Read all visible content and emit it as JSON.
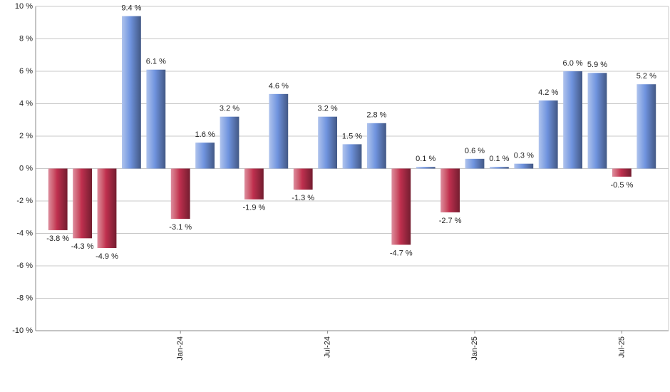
{
  "chart_data": {
    "type": "bar",
    "categories": [
      null,
      null,
      null,
      null,
      null,
      "Jan-24",
      null,
      null,
      null,
      null,
      null,
      "Jul-24",
      null,
      null,
      null,
      null,
      null,
      "Jan-25",
      null,
      null,
      null,
      null,
      null,
      "Jul-25",
      null
    ],
    "values": [
      -3.8,
      -4.3,
      -4.9,
      9.4,
      6.1,
      -3.1,
      1.6,
      3.2,
      -1.9,
      4.6,
      -1.3,
      3.2,
      1.5,
      2.8,
      -4.7,
      0.1,
      -2.7,
      0.6,
      0.1,
      0.3,
      4.2,
      6.0,
      5.9,
      -0.5,
      5.2
    ],
    "value_labels": [
      "-3.8 %",
      "-4.3 %",
      "-4.9 %",
      "9.4 %",
      "6.1 %",
      "-3.1 %",
      "1.6 %",
      "3.2 %",
      "-1.9 %",
      "4.6 %",
      "-1.3 %",
      "3.2 %",
      "1.5 %",
      "2.8 %",
      "-4.7 %",
      "0.1 %",
      "-2.7 %",
      "0.6 %",
      "0.1 %",
      "0.3 %",
      "4.2 %",
      "6.0 %",
      "5.9 %",
      "-0.5 %",
      "5.2 %"
    ],
    "positive_color": "#6f93de",
    "negative_color": "#c0304f",
    "ylim": [
      -10,
      10
    ],
    "yticks": [
      {
        "value": -10,
        "label": "-10 %"
      },
      {
        "value": -8,
        "label": "-8 %"
      },
      {
        "value": -6,
        "label": "-6 %"
      },
      {
        "value": -4,
        "label": "-4 %"
      },
      {
        "value": -2,
        "label": "-2 %"
      },
      {
        "value": 0,
        "label": "0 %"
      },
      {
        "value": 2,
        "label": "2 %"
      },
      {
        "value": 4,
        "label": "4 %"
      },
      {
        "value": 6,
        "label": "6 %"
      },
      {
        "value": 8,
        "label": "8 %"
      },
      {
        "value": 10,
        "label": "10 %"
      }
    ],
    "grid": true
  }
}
